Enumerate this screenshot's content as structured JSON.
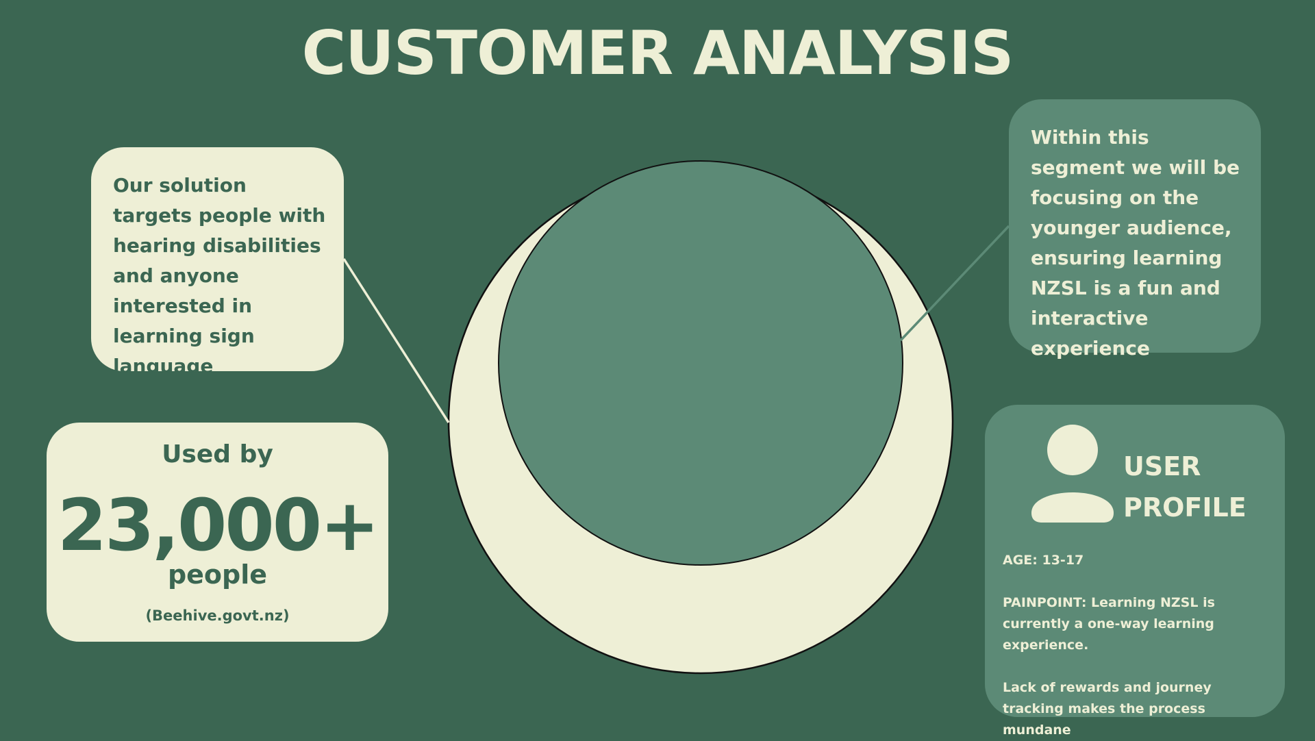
{
  "title": "CUSTOMER ANALYSIS",
  "colors": {
    "background": "#3b6652",
    "cream": "#eeefd6",
    "sage": "#5c8a76",
    "outline": "#111111"
  },
  "left_note": {
    "text": "Our solution targets people with hearing disabilities and anyone interested in learning sign language"
  },
  "right_note": {
    "text": "Within this segment we will be focusing on the younger audience, ensuring learning NZSL is a fun and interactive experience"
  },
  "stat": {
    "lead": "Used by",
    "value": "23,000+",
    "unit": "people",
    "source": "(Beehive.govt.nz)"
  },
  "profile": {
    "icon": "user-icon",
    "title_line1": "USER",
    "title_line2": "PROFILE",
    "age": "AGE:  13-17",
    "painpoint": "PAINPOINT: Learning NZSL is currently a one-way learning experience.",
    "note": "Lack of rewards and journey tracking makes the process mundane"
  }
}
